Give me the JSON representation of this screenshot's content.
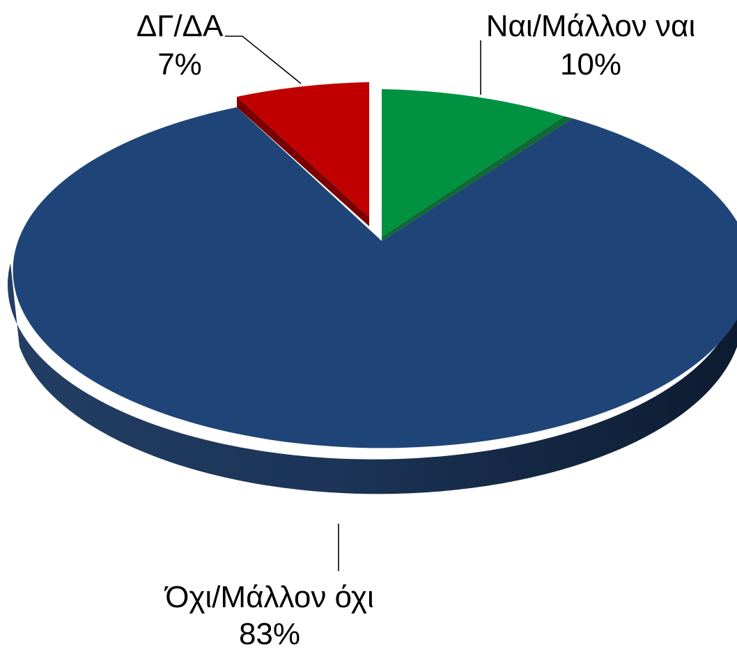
{
  "chart_data": {
    "type": "pie",
    "style": "3d-exploded",
    "legend": "none",
    "slices": [
      {
        "label": "Ναι/Μάλλον ναι",
        "value": 10,
        "value_label": "10%",
        "color": "#009141"
      },
      {
        "label": "Όχι/Μάλλον όχι",
        "value": 83,
        "value_label": "83%",
        "color": "#1f4578"
      },
      {
        "label": "ΔΓ/ΔΑ",
        "value": 7,
        "value_label": "7%",
        "color": "#c00000"
      }
    ]
  }
}
